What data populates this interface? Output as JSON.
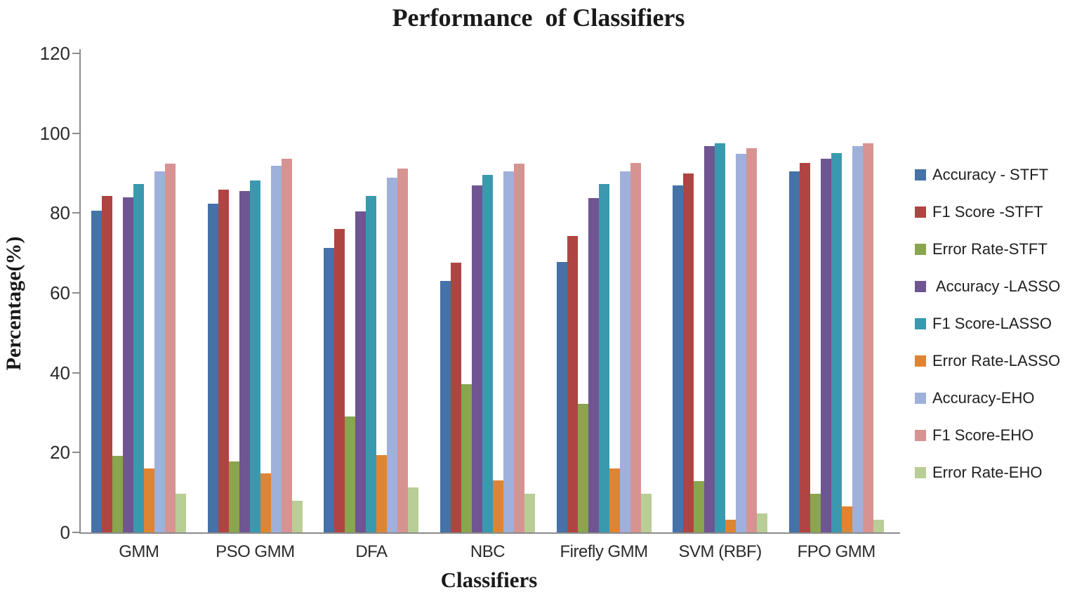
{
  "title": "Performance  of Classifiers",
  "axis_color": "#8C8C8C",
  "chart_data": {
    "type": "bar",
    "title": "Performance  of Classifiers",
    "xlabel": "Classifiers",
    "ylabel": "Percentage(%)",
    "ylim": [
      0,
      120
    ],
    "y_ticks": [
      0,
      20,
      40,
      60,
      80,
      100,
      120
    ],
    "grid": false,
    "legend_position": "right",
    "categories": [
      "GMM",
      "PSO GMM",
      "DFA",
      "NBC",
      "Firefly GMM",
      "SVM (RBF)",
      "FPO GMM"
    ],
    "series": [
      {
        "name": "Accuracy - STFT",
        "color": "#4572A7",
        "values": [
          80.6,
          82.3,
          71.2,
          63.0,
          67.7,
          87.0,
          90.5
        ]
      },
      {
        "name": "F1 Score -STFT",
        "color": "#AF4543",
        "values": [
          84.3,
          85.8,
          76.1,
          67.6,
          74.2,
          90.0,
          92.6
        ]
      },
      {
        "name": "Error Rate-STFT",
        "color": "#89A54E",
        "values": [
          19.2,
          17.8,
          29.0,
          37.1,
          32.2,
          12.9,
          9.7
        ]
      },
      {
        "name": " Accuracy -LASSO",
        "color": "#6F5591",
        "values": [
          83.9,
          85.5,
          80.5,
          86.9,
          83.8,
          96.7,
          93.6
        ]
      },
      {
        "name": "F1 Score-LASSO",
        "color": "#3A99AE",
        "values": [
          87.2,
          88.2,
          84.2,
          89.6,
          87.2,
          97.4,
          95.0
        ]
      },
      {
        "name": "Error Rate-LASSO",
        "color": "#DF8432",
        "values": [
          16.1,
          14.7,
          19.3,
          13.0,
          16.1,
          3.2,
          6.5
        ]
      },
      {
        "name": "Accuracy-EHO",
        "color": "#9FB0DA",
        "values": [
          90.4,
          91.8,
          88.8,
          90.4,
          90.4,
          94.9,
          96.8
        ]
      },
      {
        "name": "F1 Score-EHO",
        "color": "#D79392",
        "values": [
          92.3,
          93.6,
          91.1,
          92.3,
          92.6,
          96.2,
          97.5
        ]
      },
      {
        "name": "Error Rate-EHO",
        "color": "#B9CD96",
        "values": [
          9.7,
          8.0,
          11.2,
          9.7,
          9.7,
          4.8,
          3.1
        ]
      }
    ]
  }
}
